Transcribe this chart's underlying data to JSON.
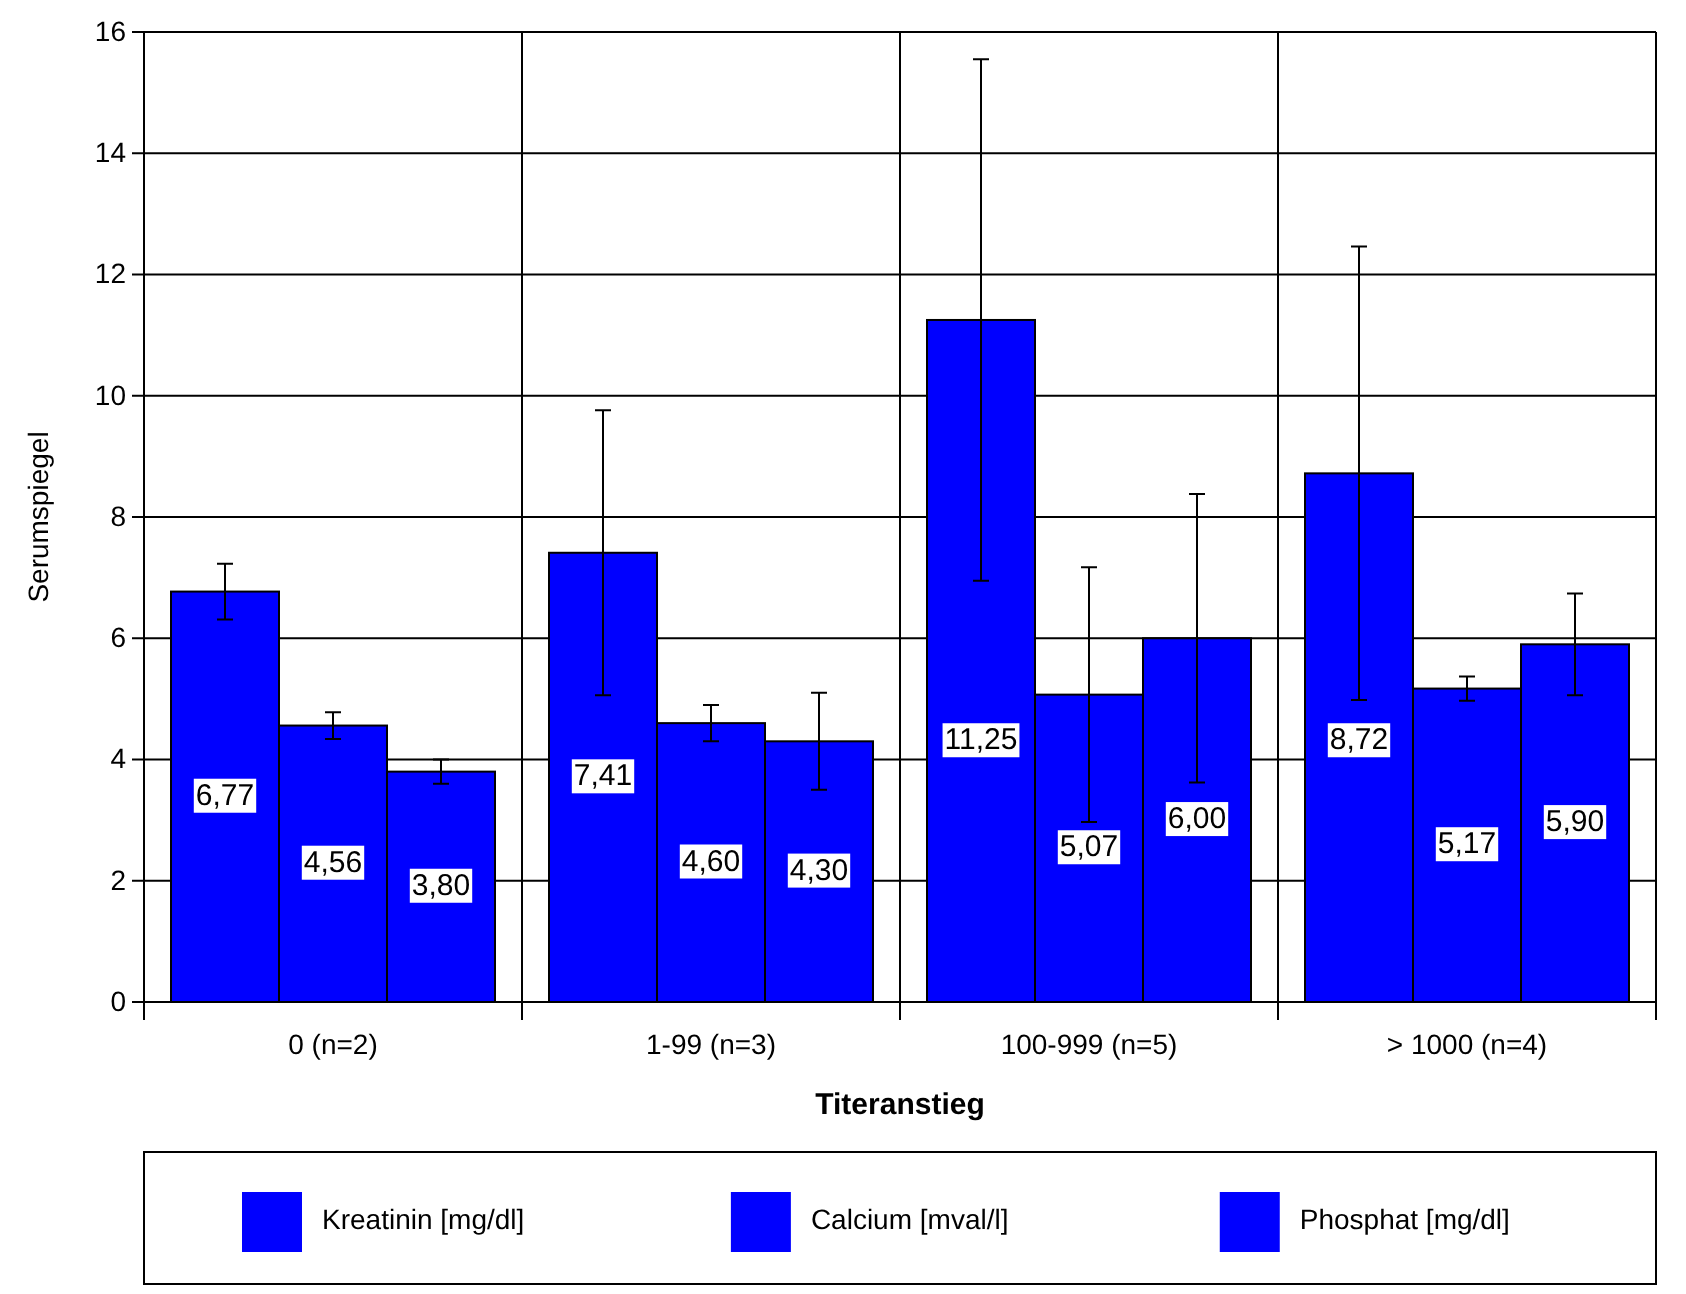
{
  "chart_data": {
    "type": "bar",
    "xlabel": "Titeranstieg",
    "ylabel": "Serumspiegel",
    "categories": [
      "0 (n=2)",
      "1-99 (n=3)",
      "100-999 (n=5)",
      "> 1000 (n=4)"
    ],
    "series": [
      {
        "name": "Kreatinin [mg/dl]",
        "color": "#0000ff",
        "values": [
          6.77,
          7.41,
          11.25,
          8.72
        ],
        "errors": [
          0.46,
          2.35,
          4.3,
          3.74
        ]
      },
      {
        "name": "Calcium [mval/l]",
        "color": "#0000ff",
        "values": [
          4.56,
          4.6,
          5.07,
          5.17
        ],
        "errors": [
          0.22,
          0.3,
          2.1,
          0.2
        ]
      },
      {
        "name": "Phosphat [mg/dl]",
        "color": "#0000ff",
        "values": [
          3.8,
          4.3,
          6.0,
          5.9
        ],
        "errors": [
          0.2,
          0.8,
          2.38,
          0.84
        ]
      }
    ],
    "value_labels": [
      [
        "6,77",
        "7,41",
        "11,25",
        "8,72"
      ],
      [
        "4,56",
        "4,60",
        "5,07",
        "5,17"
      ],
      [
        "3,80",
        "4,30",
        "6,00",
        "5,90"
      ]
    ],
    "ylim": [
      0,
      16
    ],
    "yticks": [
      0,
      2,
      4,
      6,
      8,
      10,
      12,
      14,
      16
    ],
    "grid": true,
    "legend": "bottom"
  }
}
